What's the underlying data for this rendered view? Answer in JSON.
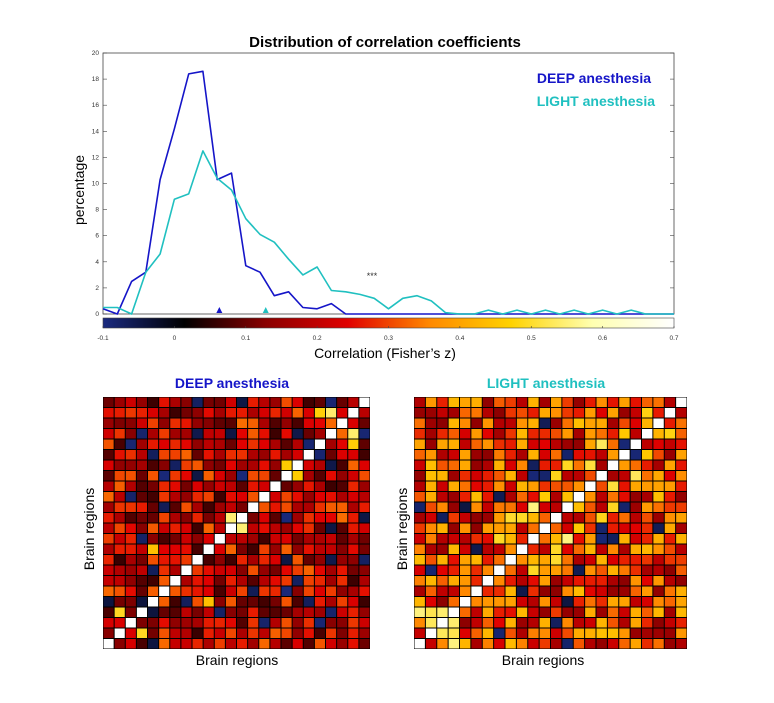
{
  "chart_data": [
    {
      "type": "line",
      "title": "Distribution of correlation coefficients",
      "xlabel": "Correlation (Fisher’s z)",
      "ylabel": "percentage",
      "xlim": [
        -0.1,
        0.7
      ],
      "ylim": [
        0,
        20
      ],
      "yticks": [
        "0",
        "2",
        "4",
        "6",
        "8",
        "10",
        "12",
        "14",
        "16",
        "18",
        "20"
      ],
      "cbar_ticks": [
        "-0.1",
        "0",
        "0.1",
        "0.2",
        "0.3",
        "0.4",
        "0.5",
        "0.6",
        "0.7"
      ],
      "cbar_colors": [
        "#1a2a80",
        "#000000",
        "#8a0000",
        "#e00000",
        "#ff8800",
        "#ffd200",
        "#ffffb0",
        "#ffffff"
      ],
      "annotation": "***",
      "annotation_at": {
        "x": 0.285,
        "y": 2.5
      },
      "series": [
        {
          "name": "DEEP anesthesia",
          "color": "#1515c8",
          "x": [
            -0.1,
            -0.08,
            -0.06,
            -0.04,
            -0.02,
            0,
            0.02,
            0.04,
            0.06,
            0.08,
            0.1,
            0.12,
            0.14,
            0.16,
            0.18,
            0.2,
            0.22,
            0.24,
            0.26,
            0.28,
            0.3,
            0.32,
            0.34,
            0.36,
            0.38,
            0.4,
            0.42,
            0.44,
            0.46,
            0.48,
            0.5,
            0.52,
            0.54,
            0.56,
            0.58,
            0.6,
            0.62,
            0.64,
            0.66,
            0.68,
            0.7
          ],
          "values": [
            0.4,
            0,
            2.5,
            3.2,
            10.3,
            14.2,
            18.4,
            18.6,
            10.3,
            10.8,
            3.7,
            3.2,
            1.4,
            1.7,
            0.5,
            0.4,
            0.8,
            0,
            0,
            0,
            0,
            0,
            0,
            0,
            0,
            0,
            0,
            0,
            0,
            0,
            0,
            0,
            0,
            0,
            0,
            0,
            0,
            0,
            0,
            0,
            0
          ],
          "median_marker": 0.063
        },
        {
          "name": "LIGHT anesthesia",
          "color": "#20c0c0",
          "x": [
            -0.1,
            -0.08,
            -0.06,
            -0.04,
            -0.02,
            0,
            0.02,
            0.04,
            0.06,
            0.08,
            0.1,
            0.12,
            0.14,
            0.16,
            0.18,
            0.2,
            0.22,
            0.24,
            0.26,
            0.28,
            0.3,
            0.32,
            0.34,
            0.36,
            0.38,
            0.4,
            0.42,
            0.44,
            0.46,
            0.48,
            0.5,
            0.52,
            0.54,
            0.56,
            0.58,
            0.6,
            0.62,
            0.64,
            0.66,
            0.68,
            0.7
          ],
          "values": [
            0.5,
            0.5,
            0,
            3.2,
            4.6,
            8.8,
            9.2,
            12.5,
            10.4,
            9.5,
            7.3,
            6.1,
            5.5,
            4.2,
            3.0,
            3.6,
            1.8,
            1.7,
            1.5,
            1.2,
            0.4,
            1.2,
            1.4,
            1.0,
            0.1,
            0,
            0,
            0.3,
            0,
            0.3,
            0,
            0.3,
            0,
            0.3,
            0,
            0.3,
            0,
            0.3,
            0,
            0,
            0
          ],
          "median_marker": 0.128
        }
      ]
    },
    {
      "type": "heatmap",
      "title": "DEEP anesthesia",
      "xlabel": "Brain regions",
      "ylabel": "Brain regions",
      "size": 24,
      "seed": 7,
      "level": 0.16,
      "spread": 0.12,
      "hotspots": [
        [
          1,
          3
        ],
        [
          9,
          4
        ],
        [
          20,
          22
        ],
        [
          19,
          22
        ],
        [
          11,
          12
        ],
        [
          16,
          17
        ]
      ]
    },
    {
      "type": "heatmap",
      "title": "LIGHT anesthesia",
      "xlabel": "Brain regions",
      "ylabel": "Brain regions",
      "size": 24,
      "seed": 13,
      "level": 0.24,
      "spread": 0.14,
      "hotspots": [
        [
          1,
          3
        ],
        [
          2,
          3
        ],
        [
          1,
          2
        ],
        [
          0,
          3
        ],
        [
          8,
          12
        ],
        [
          9,
          12
        ],
        [
          10,
          13
        ],
        [
          11,
          14
        ],
        [
          7,
          10
        ],
        [
          12,
          16
        ],
        [
          13,
          17
        ],
        [
          15,
          17
        ],
        [
          16,
          19
        ],
        [
          18,
          20
        ],
        [
          20,
          22
        ]
      ]
    }
  ]
}
